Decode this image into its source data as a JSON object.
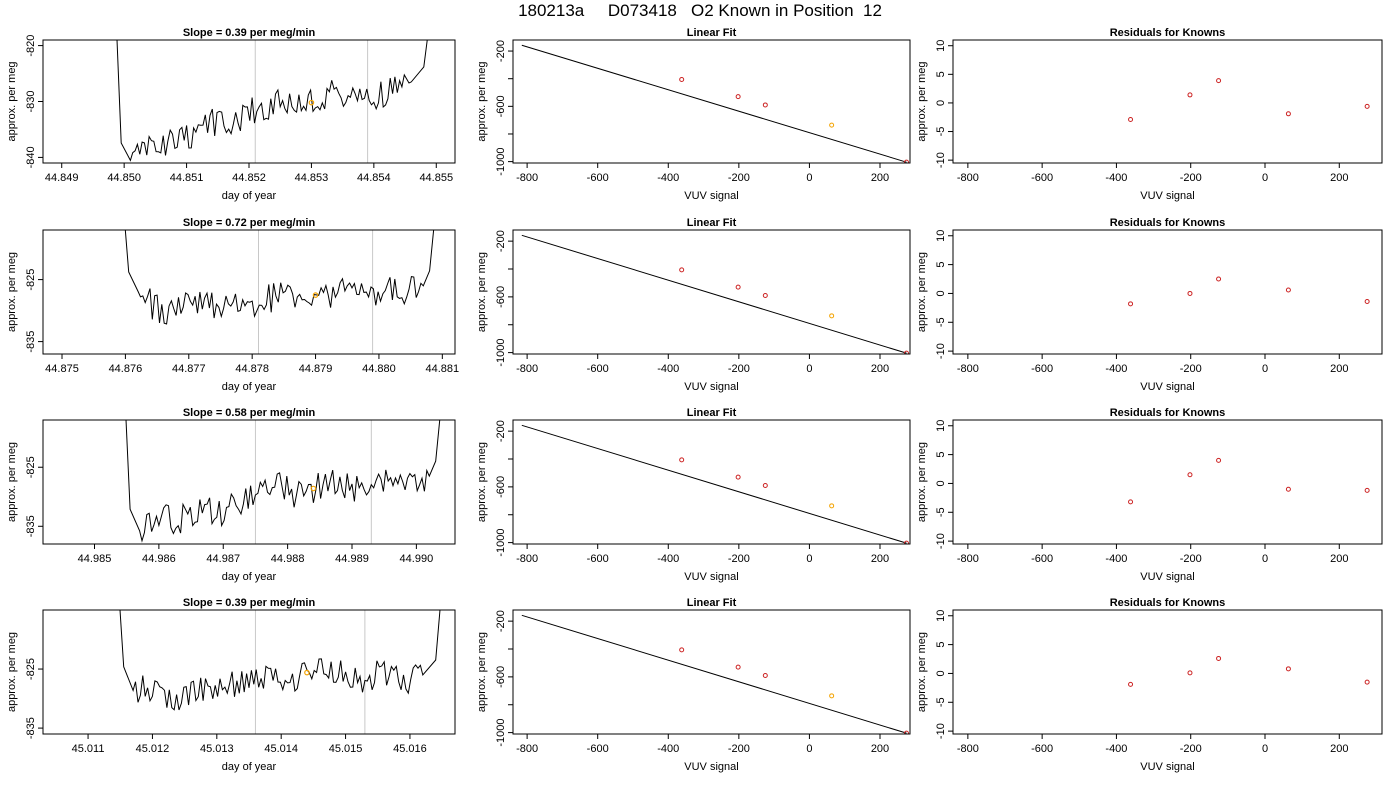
{
  "page_title": "180213a     D073418   O2 Known in Position  12",
  "colors": {
    "trace": "#000000",
    "vline": "#c8c8c8",
    "highlight": "#f4a300",
    "residual": "#cc2222",
    "fitline": "#000000"
  },
  "chart_data": [
    {
      "type": "line",
      "panel": "timeseries-1",
      "title": "Slope =  0.39  per meg/min",
      "xlabel": "day of year",
      "ylabel": "approx. per meg",
      "xlim": [
        44.8487,
        44.8553
      ],
      "ylim": [
        -841,
        -819
      ],
      "xticks": [
        44.849,
        44.85,
        44.851,
        44.852,
        44.853,
        44.854,
        44.855
      ],
      "xtick_labels": [
        "44.849",
        "44.850",
        "44.851",
        "44.852",
        "44.853",
        "44.854",
        "44.855"
      ],
      "yticks": [
        -840,
        -830,
        -820
      ],
      "ytick_labels": [
        "-840",
        "-830",
        "-820"
      ],
      "vlines": [
        44.8521,
        44.8539
      ],
      "highlight_point": {
        "x": 44.853,
        "y": -830.2
      },
      "x": [
        44.8501,
        44.8504,
        44.8507,
        44.851,
        44.8513,
        44.8516,
        44.8519,
        44.8522,
        44.8525,
        44.8528,
        44.8531,
        44.8534,
        44.8537,
        44.854,
        44.8543,
        44.8546
      ],
      "y": [
        -841.0,
        -838.0,
        -837.5,
        -836.8,
        -833.5,
        -834.2,
        -832.5,
        -831.0,
        -829.8,
        -830.7,
        -829.6,
        -828.5,
        -829.6,
        -828.8,
        -827.9,
        -826.5
      ],
      "edge": {
        "left_x": 44.85,
        "right_x": 44.8548,
        "top_y": -819
      }
    },
    {
      "type": "line",
      "panel": "timeseries-2",
      "title": "Slope =  0.72  per meg/min",
      "xlabel": "day of year",
      "ylabel": "approx. per meg",
      "xlim": [
        44.8747,
        44.8812
      ],
      "ylim": [
        -837,
        -817
      ],
      "xticks": [
        44.875,
        44.876,
        44.877,
        44.878,
        44.879,
        44.88,
        44.881
      ],
      "xtick_labels": [
        "44.875",
        "44.876",
        "44.877",
        "44.878",
        "44.879",
        "44.880",
        "44.881"
      ],
      "yticks": [
        -835,
        -825
      ],
      "ytick_labels": [
        "-835",
        "-825"
      ],
      "vlines": [
        44.8781,
        44.8799
      ],
      "highlight_point": {
        "x": 44.879,
        "y": -827.5
      },
      "x": [
        44.8762,
        44.8765,
        44.8768,
        44.8771,
        44.8774,
        44.8777,
        44.878,
        44.8783,
        44.8786,
        44.8789,
        44.8792,
        44.8795,
        44.8798,
        44.8801,
        44.8804,
        44.8807
      ],
      "y": [
        -827.0,
        -829.8,
        -830.5,
        -828.0,
        -829.0,
        -828.5,
        -829.2,
        -828.0,
        -827.0,
        -828.5,
        -828.0,
        -826.8,
        -827.5,
        -826.5,
        -827.2,
        -826.0
      ],
      "edge": {
        "left_x": 44.8761,
        "right_x": 44.8808,
        "top_y": -817
      }
    },
    {
      "type": "line",
      "panel": "timeseries-3",
      "title": "Slope =  0.58  per meg/min",
      "xlabel": "day of year",
      "ylabel": "approx. per meg",
      "xlim": [
        44.9842,
        44.9906
      ],
      "ylim": [
        -838,
        -817
      ],
      "xticks": [
        44.985,
        44.986,
        44.987,
        44.988,
        44.989,
        44.99
      ],
      "xtick_labels": [
        "44.985",
        "44.986",
        "44.987",
        "44.988",
        "44.989",
        "44.990"
      ],
      "yticks": [
        -835,
        -825
      ],
      "ytick_labels": [
        "-835",
        "-825"
      ],
      "vlines": [
        44.9875,
        44.9893
      ],
      "highlight_point": {
        "x": 44.9884,
        "y": -828.6
      },
      "x": [
        44.9857,
        44.986,
        44.9863,
        44.9866,
        44.9869,
        44.9872,
        44.9875,
        44.9878,
        44.9881,
        44.9884,
        44.9887,
        44.989,
        44.9893,
        44.9896,
        44.9899,
        44.9902
      ],
      "y": [
        -835.5,
        -833.0,
        -834.0,
        -832.5,
        -832.8,
        -831.5,
        -829.5,
        -828.0,
        -829.5,
        -828.6,
        -827.8,
        -828.5,
        -828.0,
        -827.5,
        -828.2,
        -826.5
      ],
      "edge": {
        "left_x": 44.9856,
        "right_x": 44.9903,
        "top_y": -817
      }
    },
    {
      "type": "line",
      "panel": "timeseries-4",
      "title": "Slope =  0.39  per meg/min",
      "xlabel": "day of year",
      "ylabel": "approx. per meg",
      "xlim": [
        45.0103,
        45.0167
      ],
      "ylim": [
        -836,
        -815
      ],
      "xticks": [
        45.011,
        45.012,
        45.013,
        45.014,
        45.015,
        45.016
      ],
      "xtick_labels": [
        "45.011",
        "45.012",
        "45.013",
        "45.014",
        "45.015",
        "45.016"
      ],
      "yticks": [
        -835,
        -825
      ],
      "ytick_labels": [
        "-835",
        "-825"
      ],
      "vlines": [
        45.0136,
        45.0153
      ],
      "highlight_point": {
        "x": 45.0144,
        "y": -825.6
      },
      "x": [
        45.0117,
        45.012,
        45.0123,
        45.0126,
        45.0129,
        45.0132,
        45.0135,
        45.0138,
        45.0141,
        45.0144,
        45.0147,
        45.015,
        45.0153,
        45.0156,
        45.0159,
        45.0162
      ],
      "y": [
        -828.0,
        -828.5,
        -830.0,
        -828.5,
        -829.0,
        -827.5,
        -827.0,
        -826.5,
        -827.0,
        -825.6,
        -825.0,
        -826.0,
        -826.5,
        -825.5,
        -827.0,
        -826.0
      ],
      "edge": {
        "left_x": 45.0116,
        "right_x": 45.0164,
        "top_y": -815
      }
    },
    {
      "type": "scatter",
      "panel": "linear-fit-1",
      "title": "Linear Fit",
      "xlabel": "VUV signal",
      "ylabel": "approx. per meg",
      "xlim": [
        -840,
        285
      ],
      "ylim": [
        -1010,
        -120
      ],
      "xticks": [
        -800,
        -600,
        -400,
        -200,
        0,
        200
      ],
      "xtick_labels": [
        "-800",
        "-600",
        "-400",
        "-200",
        "0",
        "200"
      ],
      "yticks": [
        -1000,
        -800,
        -600,
        -400,
        -200
      ],
      "ytick_labels": [
        "-1000",
        "",
        "-600",
        "",
        "-200"
      ],
      "fit_line": {
        "x0": -815,
        "y0": -158,
        "x1": 275,
        "y1": -1004
      },
      "x": [
        -362,
        -202,
        -125,
        63,
        275
      ],
      "y": [
        -406,
        -530,
        -590,
        -736,
        -1004
      ],
      "highlight_index": 3
    },
    {
      "type": "scatter",
      "panel": "linear-fit-2",
      "title": "Linear Fit",
      "xlabel": "VUV signal",
      "ylabel": "approx. per meg",
      "xlim": [
        -840,
        285
      ],
      "ylim": [
        -1010,
        -120
      ],
      "xticks": [
        -800,
        -600,
        -400,
        -200,
        0,
        200
      ],
      "xtick_labels": [
        "-800",
        "-600",
        "-400",
        "-200",
        "0",
        "200"
      ],
      "yticks": [
        -1000,
        -800,
        -600,
        -400,
        -200
      ],
      "ytick_labels": [
        "-1000",
        "",
        "-600",
        "",
        "-200"
      ],
      "fit_line": {
        "x0": -815,
        "y0": -158,
        "x1": 275,
        "y1": -1004
      },
      "x": [
        -362,
        -202,
        -125,
        63,
        275
      ],
      "y": [
        -406,
        -530,
        -590,
        -736,
        -1004
      ],
      "highlight_index": 3
    },
    {
      "type": "scatter",
      "panel": "linear-fit-3",
      "title": "Linear Fit",
      "xlabel": "VUV signal",
      "ylabel": "approx. per meg",
      "xlim": [
        -840,
        285
      ],
      "ylim": [
        -1010,
        -120
      ],
      "xticks": [
        -800,
        -600,
        -400,
        -200,
        0,
        200
      ],
      "xtick_labels": [
        "-800",
        "-600",
        "-400",
        "-200",
        "0",
        "200"
      ],
      "yticks": [
        -1000,
        -800,
        -600,
        -400,
        -200
      ],
      "ytick_labels": [
        "-1000",
        "",
        "-600",
        "",
        "-200"
      ],
      "fit_line": {
        "x0": -815,
        "y0": -158,
        "x1": 275,
        "y1": -1004
      },
      "x": [
        -362,
        -202,
        -125,
        63,
        275
      ],
      "y": [
        -406,
        -530,
        -590,
        -736,
        -1004
      ],
      "highlight_index": 3
    },
    {
      "type": "scatter",
      "panel": "linear-fit-4",
      "title": "Linear Fit",
      "xlabel": "VUV signal",
      "ylabel": "approx. per meg",
      "xlim": [
        -840,
        285
      ],
      "ylim": [
        -1010,
        -120
      ],
      "xticks": [
        -800,
        -600,
        -400,
        -200,
        0,
        200
      ],
      "xtick_labels": [
        "-800",
        "-600",
        "-400",
        "-200",
        "0",
        "200"
      ],
      "yticks": [
        -1000,
        -800,
        -600,
        -400,
        -200
      ],
      "ytick_labels": [
        "-1000",
        "",
        "-600",
        "",
        "-200"
      ],
      "fit_line": {
        "x0": -815,
        "y0": -158,
        "x1": 275,
        "y1": -1004
      },
      "x": [
        -362,
        -202,
        -125,
        63,
        275
      ],
      "y": [
        -406,
        -530,
        -590,
        -736,
        -1004
      ],
      "highlight_index": 3
    },
    {
      "type": "scatter",
      "panel": "residuals-1",
      "title": "Residuals for Knowns",
      "xlabel": "VUV signal",
      "ylabel": "approx. per meg",
      "xlim": [
        -840,
        315
      ],
      "ylim": [
        -10.5,
        11
      ],
      "xticks": [
        -800,
        -600,
        -400,
        -200,
        0,
        200
      ],
      "xtick_labels": [
        "-800",
        "-600",
        "-400",
        "-200",
        "0",
        "200"
      ],
      "yticks": [
        -10,
        -5,
        0,
        5,
        10
      ],
      "ytick_labels": [
        "-10",
        "-5",
        "0",
        "5",
        "10"
      ],
      "x": [
        -362,
        -202,
        -125,
        63,
        275
      ],
      "y": [
        -2.9,
        1.4,
        3.9,
        -1.9,
        -0.6
      ]
    },
    {
      "type": "scatter",
      "panel": "residuals-2",
      "title": "Residuals for Knowns",
      "xlabel": "VUV signal",
      "ylabel": "approx. per meg",
      "xlim": [
        -840,
        315
      ],
      "ylim": [
        -10.5,
        11
      ],
      "xticks": [
        -800,
        -600,
        -400,
        -200,
        0,
        200
      ],
      "xtick_labels": [
        "-800",
        "-600",
        "-400",
        "-200",
        "0",
        "200"
      ],
      "yticks": [
        -10,
        -5,
        0,
        5,
        10
      ],
      "ytick_labels": [
        "-10",
        "-5",
        "0",
        "5",
        "10"
      ],
      "x": [
        -362,
        -202,
        -125,
        63,
        275
      ],
      "y": [
        -1.8,
        0.0,
        2.5,
        0.6,
        -1.4
      ]
    },
    {
      "type": "scatter",
      "panel": "residuals-3",
      "title": "Residuals for Knowns",
      "xlabel": "VUV signal",
      "ylabel": "approx. per meg",
      "xlim": [
        -840,
        315
      ],
      "ylim": [
        -10.5,
        11
      ],
      "xticks": [
        -800,
        -600,
        -400,
        -200,
        0,
        200
      ],
      "xtick_labels": [
        "-800",
        "-600",
        "-400",
        "-200",
        "0",
        "200"
      ],
      "yticks": [
        -10,
        -5,
        0,
        5,
        10
      ],
      "ytick_labels": [
        "-10",
        "-5",
        "0",
        "5",
        "10"
      ],
      "x": [
        -362,
        -202,
        -125,
        63,
        275
      ],
      "y": [
        -3.2,
        1.5,
        4.0,
        -1.0,
        -1.2
      ]
    },
    {
      "type": "scatter",
      "panel": "residuals-4",
      "title": "Residuals for Knowns",
      "xlabel": "VUV signal",
      "ylabel": "approx. per meg",
      "xlim": [
        -840,
        315
      ],
      "ylim": [
        -10.5,
        11
      ],
      "xticks": [
        -800,
        -600,
        -400,
        -200,
        0,
        200
      ],
      "xtick_labels": [
        "-800",
        "-600",
        "-400",
        "-200",
        "0",
        "200"
      ],
      "yticks": [
        -10,
        -5,
        0,
        5,
        10
      ],
      "ytick_labels": [
        "-10",
        "-5",
        "0",
        "5",
        "10"
      ],
      "x": [
        -362,
        -202,
        -125,
        63,
        275
      ],
      "y": [
        -1.9,
        0.1,
        2.6,
        0.8,
        -1.5
      ]
    }
  ]
}
